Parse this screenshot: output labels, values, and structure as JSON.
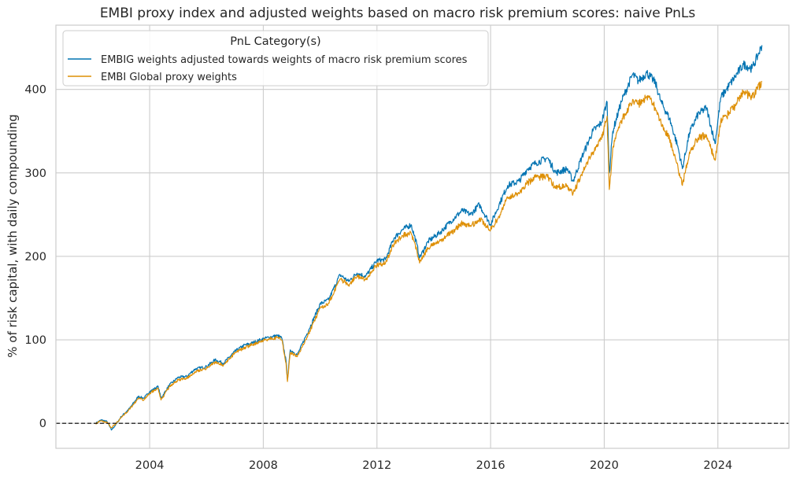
{
  "chart_data": {
    "type": "line",
    "title": "EMBI proxy index and adjusted weights based on macro risk premium scores: naive PnLs",
    "xlabel": "",
    "ylabel": "% of risk capital, with daily compounding",
    "xlim": [
      2000.7,
      2026.5
    ],
    "ylim": [
      -30,
      477
    ],
    "x_ticks": [
      2004,
      2008,
      2012,
      2016,
      2020,
      2024
    ],
    "x_tick_labels": [
      "2004",
      "2008",
      "2012",
      "2016",
      "2020",
      "2024"
    ],
    "y_ticks": [
      0,
      100,
      200,
      300,
      400
    ],
    "y_tick_labels": [
      "0",
      "100",
      "200",
      "300",
      "400"
    ],
    "grid": true,
    "reference_line": {
      "y": 0,
      "style": "dashed",
      "color": "#000000"
    },
    "legend": {
      "title": "PnL Category(s)",
      "placement": "top-left"
    },
    "series": [
      {
        "name": "EMBIG weights adjusted towards weights of macro risk premium scores",
        "color": "#0173b2",
        "points": [
          [
            2002.1,
            0
          ],
          [
            2002.3,
            4
          ],
          [
            2002.5,
            2
          ],
          [
            2002.65,
            -8
          ],
          [
            2002.8,
            -2
          ],
          [
            2003.0,
            8
          ],
          [
            2003.3,
            18
          ],
          [
            2003.6,
            32
          ],
          [
            2003.8,
            30
          ],
          [
            2004.0,
            38
          ],
          [
            2004.3,
            44
          ],
          [
            2004.4,
            30
          ],
          [
            2004.7,
            46
          ],
          [
            2005.0,
            55
          ],
          [
            2005.3,
            56
          ],
          [
            2005.6,
            65
          ],
          [
            2006.0,
            68
          ],
          [
            2006.3,
            76
          ],
          [
            2006.6,
            72
          ],
          [
            2007.0,
            86
          ],
          [
            2007.3,
            93
          ],
          [
            2007.6,
            96
          ],
          [
            2007.9,
            100
          ],
          [
            2008.2,
            103
          ],
          [
            2008.5,
            105
          ],
          [
            2008.65,
            102
          ],
          [
            2008.8,
            75
          ],
          [
            2008.85,
            52
          ],
          [
            2008.95,
            88
          ],
          [
            2009.2,
            82
          ],
          [
            2009.6,
            112
          ],
          [
            2010.0,
            143
          ],
          [
            2010.3,
            148
          ],
          [
            2010.5,
            163
          ],
          [
            2010.7,
            178
          ],
          [
            2011.0,
            170
          ],
          [
            2011.3,
            180
          ],
          [
            2011.6,
            176
          ],
          [
            2012.0,
            195
          ],
          [
            2012.3,
            196
          ],
          [
            2012.6,
            222
          ],
          [
            2012.9,
            232
          ],
          [
            2013.2,
            238
          ],
          [
            2013.4,
            215
          ],
          [
            2013.5,
            198
          ],
          [
            2013.8,
            218
          ],
          [
            2014.2,
            228
          ],
          [
            2014.6,
            242
          ],
          [
            2015.0,
            255
          ],
          [
            2015.3,
            250
          ],
          [
            2015.6,
            262
          ],
          [
            2016.0,
            238
          ],
          [
            2016.3,
            262
          ],
          [
            2016.6,
            285
          ],
          [
            2017.0,
            290
          ],
          [
            2017.3,
            305
          ],
          [
            2017.6,
            312
          ],
          [
            2018.0,
            318
          ],
          [
            2018.3,
            300
          ],
          [
            2018.7,
            305
          ],
          [
            2018.9,
            290
          ],
          [
            2019.2,
            318
          ],
          [
            2019.6,
            350
          ],
          [
            2019.9,
            360
          ],
          [
            2020.1,
            385
          ],
          [
            2020.18,
            300
          ],
          [
            2020.3,
            350
          ],
          [
            2020.6,
            385
          ],
          [
            2021.0,
            418
          ],
          [
            2021.2,
            410
          ],
          [
            2021.5,
            420
          ],
          [
            2021.8,
            408
          ],
          [
            2022.0,
            385
          ],
          [
            2022.3,
            365
          ],
          [
            2022.6,
            330
          ],
          [
            2022.75,
            305
          ],
          [
            2023.0,
            348
          ],
          [
            2023.3,
            370
          ],
          [
            2023.6,
            378
          ],
          [
            2023.9,
            335
          ],
          [
            2024.1,
            390
          ],
          [
            2024.3,
            400
          ],
          [
            2024.6,
            415
          ],
          [
            2024.9,
            430
          ],
          [
            2025.2,
            425
          ],
          [
            2025.4,
            440
          ],
          [
            2025.55,
            453
          ]
        ]
      },
      {
        "name": "EMBI Global proxy weights",
        "color": "#de8f05",
        "points": [
          [
            2002.1,
            0
          ],
          [
            2002.3,
            3
          ],
          [
            2002.5,
            1
          ],
          [
            2002.65,
            -5
          ],
          [
            2002.8,
            -1
          ],
          [
            2003.0,
            7
          ],
          [
            2003.3,
            17
          ],
          [
            2003.6,
            30
          ],
          [
            2003.8,
            28
          ],
          [
            2004.0,
            36
          ],
          [
            2004.3,
            42
          ],
          [
            2004.4,
            28
          ],
          [
            2004.7,
            44
          ],
          [
            2005.0,
            52
          ],
          [
            2005.3,
            54
          ],
          [
            2005.6,
            62
          ],
          [
            2006.0,
            66
          ],
          [
            2006.3,
            73
          ],
          [
            2006.6,
            70
          ],
          [
            2007.0,
            84
          ],
          [
            2007.3,
            90
          ],
          [
            2007.6,
            94
          ],
          [
            2007.9,
            98
          ],
          [
            2008.2,
            101
          ],
          [
            2008.5,
            103
          ],
          [
            2008.65,
            100
          ],
          [
            2008.8,
            72
          ],
          [
            2008.85,
            50
          ],
          [
            2008.95,
            85
          ],
          [
            2009.2,
            80
          ],
          [
            2009.6,
            108
          ],
          [
            2010.0,
            138
          ],
          [
            2010.3,
            144
          ],
          [
            2010.5,
            158
          ],
          [
            2010.7,
            173
          ],
          [
            2011.0,
            166
          ],
          [
            2011.3,
            176
          ],
          [
            2011.6,
            172
          ],
          [
            2012.0,
            190
          ],
          [
            2012.3,
            192
          ],
          [
            2012.6,
            215
          ],
          [
            2012.9,
            225
          ],
          [
            2013.2,
            228
          ],
          [
            2013.4,
            208
          ],
          [
            2013.5,
            192
          ],
          [
            2013.8,
            210
          ],
          [
            2014.2,
            218
          ],
          [
            2014.6,
            228
          ],
          [
            2015.0,
            240
          ],
          [
            2015.3,
            236
          ],
          [
            2015.6,
            245
          ],
          [
            2016.0,
            232
          ],
          [
            2016.3,
            248
          ],
          [
            2016.6,
            270
          ],
          [
            2017.0,
            275
          ],
          [
            2017.3,
            288
          ],
          [
            2017.6,
            295
          ],
          [
            2018.0,
            295
          ],
          [
            2018.3,
            282
          ],
          [
            2018.7,
            285
          ],
          [
            2018.9,
            275
          ],
          [
            2019.2,
            298
          ],
          [
            2019.6,
            325
          ],
          [
            2019.9,
            340
          ],
          [
            2020.1,
            368
          ],
          [
            2020.18,
            280
          ],
          [
            2020.3,
            330
          ],
          [
            2020.6,
            362
          ],
          [
            2021.0,
            388
          ],
          [
            2021.2,
            382
          ],
          [
            2021.5,
            392
          ],
          [
            2021.8,
            378
          ],
          [
            2022.0,
            360
          ],
          [
            2022.3,
            340
          ],
          [
            2022.6,
            305
          ],
          [
            2022.75,
            285
          ],
          [
            2023.0,
            325
          ],
          [
            2023.3,
            342
          ],
          [
            2023.6,
            345
          ],
          [
            2023.9,
            315
          ],
          [
            2024.1,
            362
          ],
          [
            2024.3,
            368
          ],
          [
            2024.6,
            380
          ],
          [
            2024.9,
            398
          ],
          [
            2025.2,
            390
          ],
          [
            2025.4,
            400
          ],
          [
            2025.55,
            410
          ]
        ]
      }
    ]
  }
}
